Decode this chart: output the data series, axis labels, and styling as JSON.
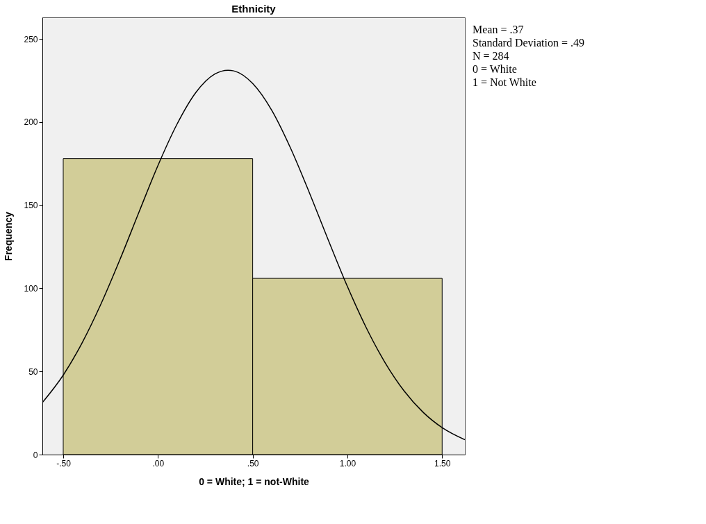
{
  "chart_data": {
    "type": "histogram",
    "title": "Ethnicity",
    "xlabel": "0 = White; 1 = not-White",
    "ylabel": "Frequency",
    "bins": [
      -0.5,
      0.5,
      1.5
    ],
    "values": [
      178,
      106
    ],
    "color": "#d2cd98",
    "xlim": [
      -0.61,
      1.62
    ],
    "xticks": [
      {
        "value": -0.5,
        "label": "-.50"
      },
      {
        "value": 0,
        "label": ".00"
      },
      {
        "value": 0.5,
        "label": ".50"
      },
      {
        "value": 1,
        "label": "1.00"
      },
      {
        "value": 1.5,
        "label": "1.50"
      }
    ],
    "ylim": [
      0,
      263
    ],
    "yticks": [
      0,
      50,
      100,
      150,
      200,
      250
    ],
    "grid": false,
    "series": [
      {
        "type": "line",
        "color": "#000000",
        "x": [
          -0.61,
          -0.5,
          -0.4,
          -0.3,
          -0.2,
          -0.1,
          0,
          0.1,
          0.2,
          0.3,
          0.37,
          0.4,
          0.5,
          0.6,
          0.7,
          0.8,
          0.9,
          1.0,
          1.1,
          1.2,
          1.3,
          1.4,
          1.5,
          1.62
        ],
        "values": [
          31.3,
          47.8,
          67.3,
          90.8,
          117.5,
          145.9,
          173.9,
          198.6,
          217.8,
          228.9,
          231.2,
          230.8,
          223.2,
          207.2,
          184.3,
          157.3,
          128.8,
          101.1,
          76.2,
          55.1,
          38.2,
          25.4,
          16.2,
          8.9
        ]
      }
    ],
    "annotations": [
      "Mean = .37",
      "Standard Deviation = .49",
      "N = 284",
      "0 = White",
      "1 = Not White"
    ]
  }
}
